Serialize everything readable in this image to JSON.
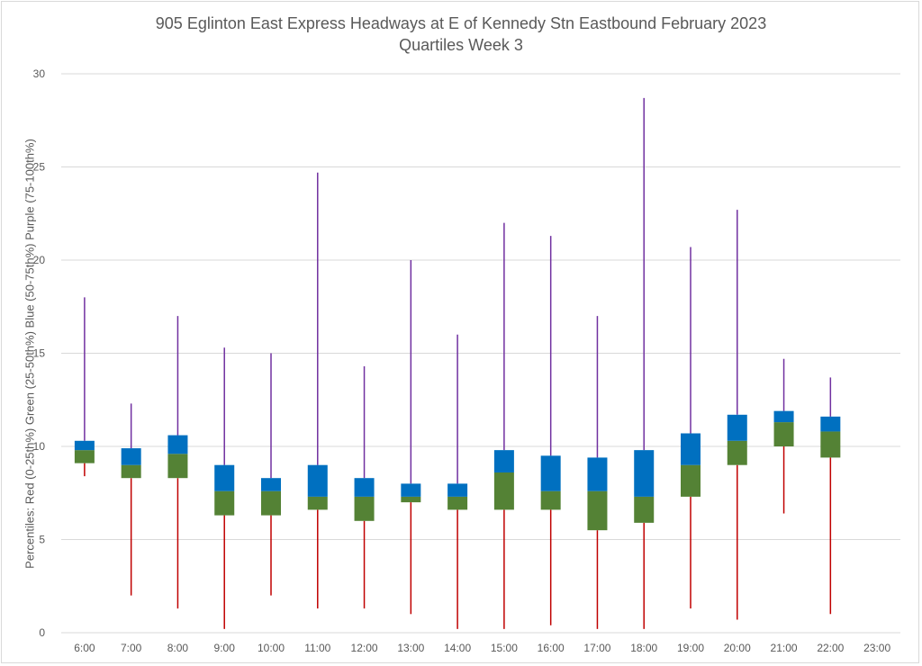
{
  "chart_data": {
    "type": "box",
    "title": "905 Eglinton East Express Headways at E of Kennedy Stn Eastbound February 2023",
    "subtitle": "Quartiles Week 3",
    "ylabel": "Percentiles:  Red (0-25th%)  Green (25-50th%)  Blue (50-75th%)  Purple (75-100th%)",
    "xlabel": "",
    "ylim": [
      0,
      30
    ],
    "yticks": [
      "0",
      "5",
      "10",
      "15",
      "20",
      "25",
      "30"
    ],
    "ytick_values": [
      0,
      5,
      10,
      15,
      20,
      25,
      30
    ],
    "grid": true,
    "categories": [
      "6:00",
      "7:00",
      "8:00",
      "9:00",
      "10:00",
      "11:00",
      "12:00",
      "13:00",
      "14:00",
      "15:00",
      "16:00",
      "17:00",
      "18:00",
      "19:00",
      "20:00",
      "21:00",
      "22:00",
      "23:00"
    ],
    "series": [
      {
        "name": "min",
        "values": [
          8.4,
          2.0,
          1.3,
          0.2,
          2.0,
          1.3,
          1.3,
          1.0,
          0.2,
          0.2,
          0.4,
          0.2,
          0.2,
          1.3,
          0.7,
          6.4,
          1.0,
          null
        ]
      },
      {
        "name": "q1",
        "values": [
          9.1,
          8.3,
          8.3,
          6.3,
          6.3,
          6.6,
          6.0,
          7.0,
          6.6,
          6.6,
          6.6,
          5.5,
          5.9,
          7.3,
          9.0,
          10.0,
          9.4,
          null
        ]
      },
      {
        "name": "median",
        "values": [
          9.8,
          9.0,
          9.6,
          7.6,
          7.6,
          7.3,
          7.3,
          7.3,
          7.3,
          8.6,
          7.6,
          7.6,
          7.3,
          9.0,
          10.3,
          11.3,
          10.8,
          null
        ]
      },
      {
        "name": "q3",
        "values": [
          10.3,
          9.9,
          10.6,
          9.0,
          8.3,
          9.0,
          8.3,
          8.0,
          8.0,
          9.8,
          9.5,
          9.4,
          9.8,
          10.7,
          11.7,
          11.9,
          11.6,
          null
        ]
      },
      {
        "name": "max",
        "values": [
          18.0,
          12.3,
          17.0,
          15.3,
          15.0,
          24.7,
          14.3,
          20.0,
          16.0,
          22.0,
          21.3,
          17.0,
          28.7,
          20.7,
          22.7,
          14.7,
          13.7,
          null
        ]
      }
    ],
    "colors": {
      "lower_whisker": "#c00000",
      "lower_box": "#548235",
      "upper_box": "#0070c0",
      "upper_whisker": "#7030a0",
      "grid": "#d9d9d9",
      "text": "#595959"
    }
  }
}
